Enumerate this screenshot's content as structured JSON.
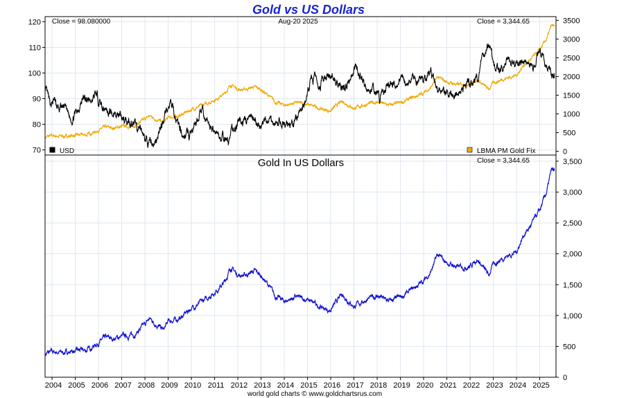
{
  "title": "Gold vs US Dollars",
  "footer": "world gold charts © www.goldchartsrus.com",
  "colors": {
    "title": "#1a22d8",
    "usd": "#000000",
    "gold_top": "#f0a800",
    "gold_bottom": "#1010d0",
    "grid": "#dde7ef",
    "frame": "#000000"
  },
  "chart_data": [
    {
      "type": "line",
      "panel": "top",
      "header": {
        "left": "Close = 98.080000",
        "center": "Aug-20  2025",
        "right": "Close = 3,344.65"
      },
      "legend": {
        "left": "USD",
        "right": "LBMA PM Gold Fix"
      },
      "legend_placement": "bottom",
      "grid": true,
      "ylim_left": [
        68,
        122
      ],
      "ylim_right": [
        -100,
        3600
      ],
      "yticks_left": [
        "120",
        "110",
        "100",
        "90",
        "80",
        "70"
      ],
      "yticks_right": [
        "3500",
        "3000",
        "2500",
        "2000",
        "1500",
        "1000",
        "500",
        "0"
      ],
      "xlim": [
        2003.7,
        2025.7
      ],
      "series": [
        {
          "name": "USD",
          "axis": "left",
          "x": [
            2003.7,
            2003.9,
            2004.1,
            2004.3,
            2004.5,
            2004.8,
            2005.0,
            2005.3,
            2005.6,
            2005.9,
            2006.2,
            2006.5,
            2006.8,
            2007.0,
            2007.3,
            2007.6,
            2007.9,
            2008.2,
            2008.5,
            2008.7,
            2008.9,
            2009.1,
            2009.3,
            2009.6,
            2009.9,
            2010.2,
            2010.4,
            2010.6,
            2010.9,
            2011.1,
            2011.3,
            2011.6,
            2011.8,
            2012.0,
            2012.3,
            2012.5,
            2012.8,
            2013.0,
            2013.3,
            2013.6,
            2013.9,
            2014.2,
            2014.5,
            2014.8,
            2015.0,
            2015.2,
            2015.5,
            2015.8,
            2016.0,
            2016.3,
            2016.6,
            2016.9,
            2017.0,
            2017.3,
            2017.6,
            2017.9,
            2018.1,
            2018.4,
            2018.7,
            2019.0,
            2019.3,
            2019.6,
            2019.9,
            2020.2,
            2020.4,
            2020.6,
            2020.9,
            2021.1,
            2021.4,
            2021.7,
            2022.0,
            2022.3,
            2022.6,
            2022.8,
            2023.0,
            2023.3,
            2023.6,
            2023.9,
            2024.1,
            2024.4,
            2024.7,
            2024.9,
            2025.1,
            2025.3,
            2025.5,
            2025.63
          ],
          "values": [
            94,
            87,
            89,
            85,
            87,
            82,
            84,
            90,
            89,
            91,
            87,
            85,
            84,
            82,
            82,
            79,
            76,
            72,
            73,
            79,
            86,
            88,
            83,
            77,
            75,
            80,
            86,
            82,
            78,
            77,
            75,
            73,
            78,
            80,
            81,
            82,
            80,
            79,
            82,
            81,
            80,
            80,
            81,
            86,
            92,
            98,
            96,
            97,
            99,
            95,
            94,
            100,
            102,
            100,
            94,
            93,
            90,
            94,
            96,
            97,
            97,
            97,
            98,
            99,
            100,
            93,
            92,
            90,
            92,
            94,
            96,
            98,
            107,
            112,
            104,
            102,
            105,
            104,
            103,
            105,
            101,
            107,
            108,
            104,
            99,
            98
          ]
        },
        {
          "name": "LBMA PM Gold Fix",
          "axis": "right",
          "x": [
            2003.7,
            2004.0,
            2004.5,
            2005.0,
            2005.5,
            2006.0,
            2006.3,
            2006.6,
            2007.0,
            2007.5,
            2008.0,
            2008.2,
            2008.8,
            2009.0,
            2009.5,
            2010.0,
            2010.5,
            2011.0,
            2011.4,
            2011.7,
            2012.0,
            2012.3,
            2012.7,
            2013.0,
            2013.3,
            2013.6,
            2014.0,
            2014.5,
            2015.0,
            2015.5,
            2015.9,
            2016.0,
            2016.5,
            2017.0,
            2017.5,
            2018.0,
            2018.5,
            2019.0,
            2019.5,
            2020.0,
            2020.3,
            2020.6,
            2021.0,
            2021.5,
            2022.0,
            2022.3,
            2022.8,
            2023.0,
            2023.5,
            2024.0,
            2024.3,
            2024.6,
            2025.0,
            2025.3,
            2025.5,
            2025.63
          ],
          "values": [
            380,
            410,
            400,
            425,
            440,
            560,
            640,
            620,
            660,
            680,
            850,
            950,
            760,
            900,
            950,
            1120,
            1230,
            1380,
            1520,
            1780,
            1660,
            1650,
            1720,
            1650,
            1500,
            1320,
            1230,
            1300,
            1250,
            1150,
            1080,
            1100,
            1340,
            1150,
            1250,
            1320,
            1230,
            1290,
            1420,
            1560,
            1700,
            1980,
            1850,
            1780,
            1800,
            1920,
            1650,
            1830,
            1950,
            2030,
            2300,
            2450,
            2700,
            3000,
            3350,
            3345
          ]
        }
      ]
    },
    {
      "type": "line",
      "panel": "bottom",
      "title": "Gold In US Dollars",
      "header_right": "Close = 3,344.65",
      "grid": true,
      "ylim": [
        0,
        3600
      ],
      "yticks": [
        "3,500",
        "3,000",
        "2,500",
        "2,000",
        "1,500",
        "1,000",
        "500",
        "0"
      ],
      "xlim": [
        2003.7,
        2025.7
      ],
      "categories": [
        "2004",
        "2005",
        "2006",
        "2007",
        "2008",
        "2009",
        "2010",
        "2011",
        "2012",
        "2013",
        "2014",
        "2015",
        "2016",
        "2017",
        "2018",
        "2019",
        "2020",
        "2021",
        "2022",
        "2023",
        "2024",
        "2025"
      ],
      "series": [
        {
          "name": "",
          "x": [
            2003.7,
            2004.0,
            2004.5,
            2005.0,
            2005.5,
            2006.0,
            2006.3,
            2006.6,
            2007.0,
            2007.5,
            2008.0,
            2008.2,
            2008.8,
            2009.0,
            2009.5,
            2010.0,
            2010.5,
            2011.0,
            2011.4,
            2011.7,
            2012.0,
            2012.3,
            2012.7,
            2013.0,
            2013.3,
            2013.6,
            2014.0,
            2014.5,
            2015.0,
            2015.5,
            2015.9,
            2016.0,
            2016.5,
            2017.0,
            2017.5,
            2018.0,
            2018.5,
            2019.0,
            2019.5,
            2020.0,
            2020.3,
            2020.6,
            2021.0,
            2021.5,
            2022.0,
            2022.3,
            2022.8,
            2023.0,
            2023.5,
            2024.0,
            2024.3,
            2024.6,
            2025.0,
            2025.3,
            2025.5,
            2025.63
          ],
          "values": [
            380,
            410,
            400,
            425,
            440,
            560,
            640,
            620,
            660,
            680,
            850,
            950,
            760,
            900,
            950,
            1120,
            1230,
            1380,
            1520,
            1780,
            1660,
            1650,
            1720,
            1650,
            1500,
            1320,
            1230,
            1300,
            1250,
            1150,
            1080,
            1100,
            1340,
            1150,
            1250,
            1320,
            1230,
            1290,
            1420,
            1560,
            1700,
            1980,
            1850,
            1780,
            1800,
            1920,
            1650,
            1830,
            1950,
            2030,
            2300,
            2450,
            2700,
            3000,
            3350,
            3345
          ]
        }
      ]
    }
  ]
}
